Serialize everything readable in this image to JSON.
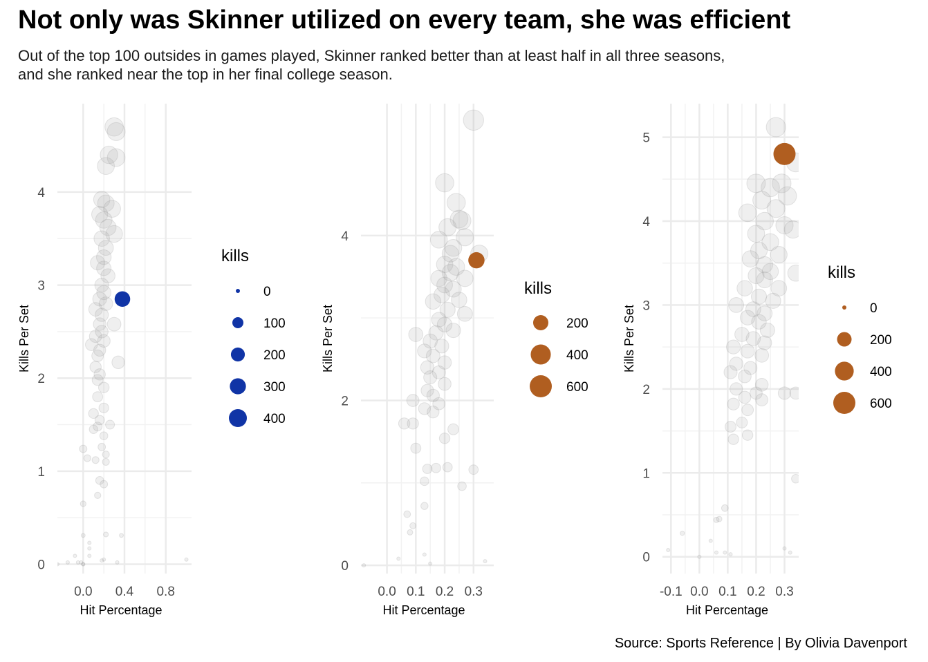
{
  "header": {
    "title": "Not only was Skinner utilized on every team, she was efficient",
    "subtitle_line1": "Out of the top 100 outsides in games played, Skinner ranked better than at least half in all three seasons,",
    "subtitle_line2": "and she ranked near the top in her final college season."
  },
  "caption": "Source: Sports Reference | By Olivia Davenport",
  "chart_data": [
    {
      "type": "scatter",
      "xlabel": "Hit Percentage",
      "ylabel": "Kills Per Set",
      "xlim": [
        -0.25,
        1.05
      ],
      "ylim": [
        -0.1,
        4.95
      ],
      "xticks": [
        0.0,
        0.4,
        0.8
      ],
      "xtick_labels": [
        "0.0",
        "0.4",
        "0.8"
      ],
      "yticks": [
        0,
        1,
        2,
        3,
        4
      ],
      "ytick_labels": [
        "0",
        "1",
        "2",
        "3",
        "4"
      ],
      "legend_title": "kills",
      "legend": {
        "values": [
          0,
          100,
          200,
          300,
          400
        ],
        "labels": [
          "0",
          "100",
          "200",
          "300",
          "400"
        ],
        "color": "#1034a6"
      },
      "highlight": {
        "x": 0.38,
        "y": 2.85,
        "kills": 300,
        "color": "#1034a6"
      },
      "others": [
        [
          0.3,
          4.7,
          420
        ],
        [
          0.32,
          4.65,
          400
        ],
        [
          0.25,
          4.4,
          380
        ],
        [
          0.32,
          4.37,
          390
        ],
        [
          0.22,
          4.28,
          360
        ],
        [
          0.18,
          3.92,
          330
        ],
        [
          0.22,
          3.88,
          340
        ],
        [
          0.28,
          3.82,
          360
        ],
        [
          0.16,
          3.76,
          320
        ],
        [
          0.2,
          3.7,
          340
        ],
        [
          0.24,
          3.62,
          330
        ],
        [
          0.3,
          3.55,
          350
        ],
        [
          0.18,
          3.5,
          300
        ],
        [
          0.22,
          3.4,
          280
        ],
        [
          0.2,
          3.3,
          270
        ],
        [
          0.14,
          3.24,
          260
        ],
        [
          0.2,
          3.18,
          260
        ],
        [
          0.24,
          3.1,
          250
        ],
        [
          0.18,
          3.0,
          240
        ],
        [
          0.2,
          2.92,
          250
        ],
        [
          0.16,
          2.85,
          240
        ],
        [
          0.22,
          2.8,
          230
        ],
        [
          0.12,
          2.74,
          230
        ],
        [
          0.18,
          2.68,
          220
        ],
        [
          0.3,
          2.58,
          230
        ],
        [
          0.16,
          2.58,
          200
        ],
        [
          0.18,
          2.5,
          200
        ],
        [
          0.12,
          2.45,
          190
        ],
        [
          0.2,
          2.4,
          200
        ],
        [
          0.08,
          2.36,
          180
        ],
        [
          0.16,
          2.3,
          180
        ],
        [
          0.14,
          2.24,
          170
        ],
        [
          0.34,
          2.17,
          200
        ],
        [
          0.12,
          2.12,
          160
        ],
        [
          0.16,
          2.04,
          160
        ],
        [
          0.14,
          1.98,
          150
        ],
        [
          0.2,
          1.9,
          140
        ],
        [
          0.14,
          1.8,
          130
        ],
        [
          0.2,
          1.68,
          120
        ],
        [
          0.1,
          1.62,
          120
        ],
        [
          0.16,
          1.55,
          110
        ],
        [
          0.14,
          1.48,
          100
        ],
        [
          0.26,
          1.5,
          100
        ],
        [
          0.1,
          1.45,
          90
        ],
        [
          0.2,
          1.38,
          80
        ],
        [
          0.18,
          1.26,
          70
        ],
        [
          0.0,
          1.24,
          70
        ],
        [
          0.22,
          1.18,
          60
        ],
        [
          0.04,
          1.14,
          60
        ],
        [
          0.12,
          1.12,
          60
        ],
        [
          0.22,
          1.1,
          60
        ],
        [
          0.16,
          0.9,
          80
        ],
        [
          0.2,
          0.86,
          70
        ],
        [
          0.14,
          0.74,
          50
        ],
        [
          0.0,
          0.65,
          40
        ],
        [
          0.0,
          0.31,
          20
        ],
        [
          0.22,
          0.32,
          30
        ],
        [
          0.37,
          0.31,
          20
        ],
        [
          0.06,
          0.23,
          15
        ],
        [
          0.06,
          0.17,
          15
        ],
        [
          0.06,
          0.09,
          10
        ],
        [
          -0.08,
          0.09,
          10
        ],
        [
          0.18,
          0.04,
          10
        ],
        [
          0.2,
          0.05,
          10
        ],
        [
          -0.15,
          0.02,
          5
        ],
        [
          -0.02,
          0.02,
          5
        ],
        [
          0.0,
          0.0,
          3
        ],
        [
          0.0,
          0.0,
          3
        ],
        [
          -0.05,
          0.02,
          5
        ],
        [
          -0.25,
          0.0,
          3
        ],
        [
          0.33,
          0.02,
          5
        ],
        [
          1.0,
          0.05,
          5
        ]
      ]
    },
    {
      "type": "scatter",
      "xlabel": "Hit Percentage",
      "ylabel": "Kills Per Set",
      "xlim": [
        -0.09,
        0.37
      ],
      "ylim": [
        -0.1,
        5.6
      ],
      "xticks": [
        0.0,
        0.1,
        0.2,
        0.3
      ],
      "xtick_labels": [
        "0.0",
        "0.1",
        "0.2",
        "0.3"
      ],
      "yticks": [
        0,
        2,
        4
      ],
      "ytick_labels": [
        "0",
        "2",
        "4"
      ],
      "legend_title": "kills",
      "legend": {
        "values": [
          200,
          400,
          600
        ],
        "labels": [
          "200",
          "400",
          "600"
        ],
        "color": "#b05e20"
      },
      "highlight": {
        "x": 0.31,
        "y": 3.7,
        "kills": 350,
        "color": "#b05e20"
      },
      "others": [
        [
          0.3,
          5.4,
          550
        ],
        [
          0.2,
          4.64,
          450
        ],
        [
          0.24,
          4.4,
          450
        ],
        [
          0.25,
          4.2,
          420
        ],
        [
          0.21,
          4.1,
          400
        ],
        [
          0.26,
          4.18,
          430
        ],
        [
          0.27,
          3.98,
          400
        ],
        [
          0.18,
          3.95,
          380
        ],
        [
          0.23,
          3.85,
          380
        ],
        [
          0.22,
          3.78,
          370
        ],
        [
          0.32,
          3.78,
          400
        ],
        [
          0.2,
          3.65,
          360
        ],
        [
          0.24,
          3.62,
          380
        ],
        [
          0.22,
          3.55,
          370
        ],
        [
          0.27,
          3.48,
          360
        ],
        [
          0.18,
          3.48,
          350
        ],
        [
          0.2,
          3.4,
          330
        ],
        [
          0.23,
          3.35,
          340
        ],
        [
          0.19,
          3.28,
          330
        ],
        [
          0.25,
          3.22,
          320
        ],
        [
          0.16,
          3.2,
          320
        ],
        [
          0.21,
          3.1,
          310
        ],
        [
          0.27,
          3.05,
          300
        ],
        [
          0.18,
          2.98,
          290
        ],
        [
          0.2,
          2.92,
          290
        ],
        [
          0.23,
          2.85,
          280
        ],
        [
          0.17,
          2.82,
          280
        ],
        [
          0.1,
          2.8,
          270
        ],
        [
          0.15,
          2.72,
          270
        ],
        [
          0.19,
          2.66,
          260
        ],
        [
          0.13,
          2.6,
          260
        ],
        [
          0.16,
          2.54,
          250
        ],
        [
          0.2,
          2.46,
          240
        ],
        [
          0.14,
          2.4,
          240
        ],
        [
          0.18,
          2.34,
          230
        ],
        [
          0.15,
          2.28,
          230
        ],
        [
          0.2,
          2.2,
          220
        ],
        [
          0.14,
          2.12,
          210
        ],
        [
          0.16,
          2.06,
          210
        ],
        [
          0.09,
          2.0,
          200
        ],
        [
          0.18,
          1.96,
          200
        ],
        [
          0.13,
          1.9,
          190
        ],
        [
          0.16,
          1.86,
          190
        ],
        [
          0.06,
          1.72,
          170
        ],
        [
          0.09,
          1.72,
          170
        ],
        [
          0.23,
          1.65,
          160
        ],
        [
          0.2,
          1.54,
          150
        ],
        [
          0.1,
          1.42,
          140
        ],
        [
          0.21,
          1.19,
          120
        ],
        [
          0.14,
          1.17,
          120
        ],
        [
          0.17,
          1.18,
          120
        ],
        [
          0.3,
          1.16,
          120
        ],
        [
          0.13,
          1.02,
          100
        ],
        [
          0.26,
          0.96,
          100
        ],
        [
          0.13,
          0.72,
          70
        ],
        [
          0.07,
          0.62,
          60
        ],
        [
          0.09,
          0.48,
          50
        ],
        [
          0.08,
          0.4,
          40
        ],
        [
          0.13,
          0.13,
          10
        ],
        [
          0.04,
          0.08,
          5
        ],
        [
          0.15,
          0.02,
          5
        ],
        [
          0.34,
          0.05,
          5
        ],
        [
          -0.08,
          0.0,
          3
        ]
      ]
    },
    {
      "type": "scatter",
      "xlabel": "Hit Percentage",
      "ylabel": "Kills Per Set",
      "xlim": [
        -0.13,
        0.35
      ],
      "ylim": [
        -0.2,
        5.4
      ],
      "xticks": [
        -0.1,
        0.0,
        0.1,
        0.2,
        0.3
      ],
      "xtick_labels": [
        "-0.1",
        "0.0",
        "0.1",
        "0.2",
        "0.3"
      ],
      "yticks": [
        0,
        1,
        2,
        3,
        4,
        5
      ],
      "ytick_labels": [
        "0",
        "1",
        "2",
        "3",
        "4",
        "5"
      ],
      "legend_title": "kills",
      "legend": {
        "values": [
          0,
          200,
          400,
          600
        ],
        "labels": [
          "0",
          "200",
          "400",
          "600"
        ],
        "color": "#b05e20"
      },
      "highlight": {
        "x": 0.3,
        "y": 4.8,
        "kills": 650,
        "color": "#b05e20"
      },
      "others": [
        [
          0.27,
          5.12,
          500
        ],
        [
          0.34,
          4.7,
          480
        ],
        [
          0.29,
          4.45,
          470
        ],
        [
          0.2,
          4.45,
          460
        ],
        [
          0.25,
          4.4,
          450
        ],
        [
          0.31,
          4.3,
          450
        ],
        [
          0.22,
          4.25,
          430
        ],
        [
          0.27,
          4.15,
          430
        ],
        [
          0.17,
          4.1,
          420
        ],
        [
          0.23,
          4.0,
          410
        ],
        [
          0.3,
          3.95,
          400
        ],
        [
          0.33,
          3.9,
          400
        ],
        [
          0.2,
          3.85,
          390
        ],
        [
          0.25,
          3.75,
          380
        ],
        [
          0.21,
          3.65,
          370
        ],
        [
          0.28,
          3.6,
          370
        ],
        [
          0.18,
          3.55,
          360
        ],
        [
          0.23,
          3.48,
          350
        ],
        [
          0.25,
          3.4,
          350
        ],
        [
          0.34,
          3.38,
          350
        ],
        [
          0.2,
          3.35,
          340
        ],
        [
          0.23,
          3.3,
          340
        ],
        [
          0.28,
          3.2,
          330
        ],
        [
          0.16,
          3.2,
          320
        ],
        [
          0.21,
          3.1,
          310
        ],
        [
          0.26,
          3.05,
          310
        ],
        [
          0.13,
          3.0,
          300
        ],
        [
          0.19,
          2.95,
          300
        ],
        [
          0.23,
          2.9,
          300
        ],
        [
          0.17,
          2.85,
          290
        ],
        [
          0.21,
          2.8,
          290
        ],
        [
          0.24,
          2.7,
          280
        ],
        [
          0.15,
          2.65,
          270
        ],
        [
          0.19,
          2.6,
          270
        ],
        [
          0.23,
          2.55,
          260
        ],
        [
          0.12,
          2.5,
          260
        ],
        [
          0.17,
          2.45,
          250
        ],
        [
          0.22,
          2.4,
          250
        ],
        [
          0.13,
          2.3,
          240
        ],
        [
          0.18,
          2.25,
          230
        ],
        [
          0.11,
          2.2,
          230
        ],
        [
          0.16,
          2.15,
          220
        ],
        [
          0.22,
          2.05,
          220
        ],
        [
          0.13,
          2.0,
          210
        ],
        [
          0.2,
          1.95,
          200
        ],
        [
          0.3,
          1.95,
          210
        ],
        [
          0.34,
          1.95,
          200
        ],
        [
          0.16,
          1.9,
          200
        ],
        [
          0.22,
          1.87,
          200
        ],
        [
          0.12,
          1.82,
          190
        ],
        [
          0.17,
          1.75,
          180
        ],
        [
          0.15,
          1.6,
          160
        ],
        [
          0.11,
          1.55,
          160
        ],
        [
          0.17,
          1.45,
          150
        ],
        [
          0.12,
          1.4,
          150
        ],
        [
          0.34,
          0.93,
          100
        ],
        [
          0.09,
          0.58,
          60
        ],
        [
          0.06,
          0.44,
          40
        ],
        [
          0.07,
          0.45,
          40
        ],
        [
          -0.06,
          0.28,
          25
        ],
        [
          0.04,
          0.19,
          15
        ],
        [
          0.09,
          0.05,
          10
        ],
        [
          0.11,
          0.03,
          5
        ],
        [
          0.3,
          0.1,
          10
        ],
        [
          0.32,
          0.05,
          5
        ],
        [
          -0.11,
          0.08,
          10
        ],
        [
          0.0,
          0.0,
          3
        ],
        [
          0.06,
          0.05,
          5
        ]
      ]
    }
  ]
}
